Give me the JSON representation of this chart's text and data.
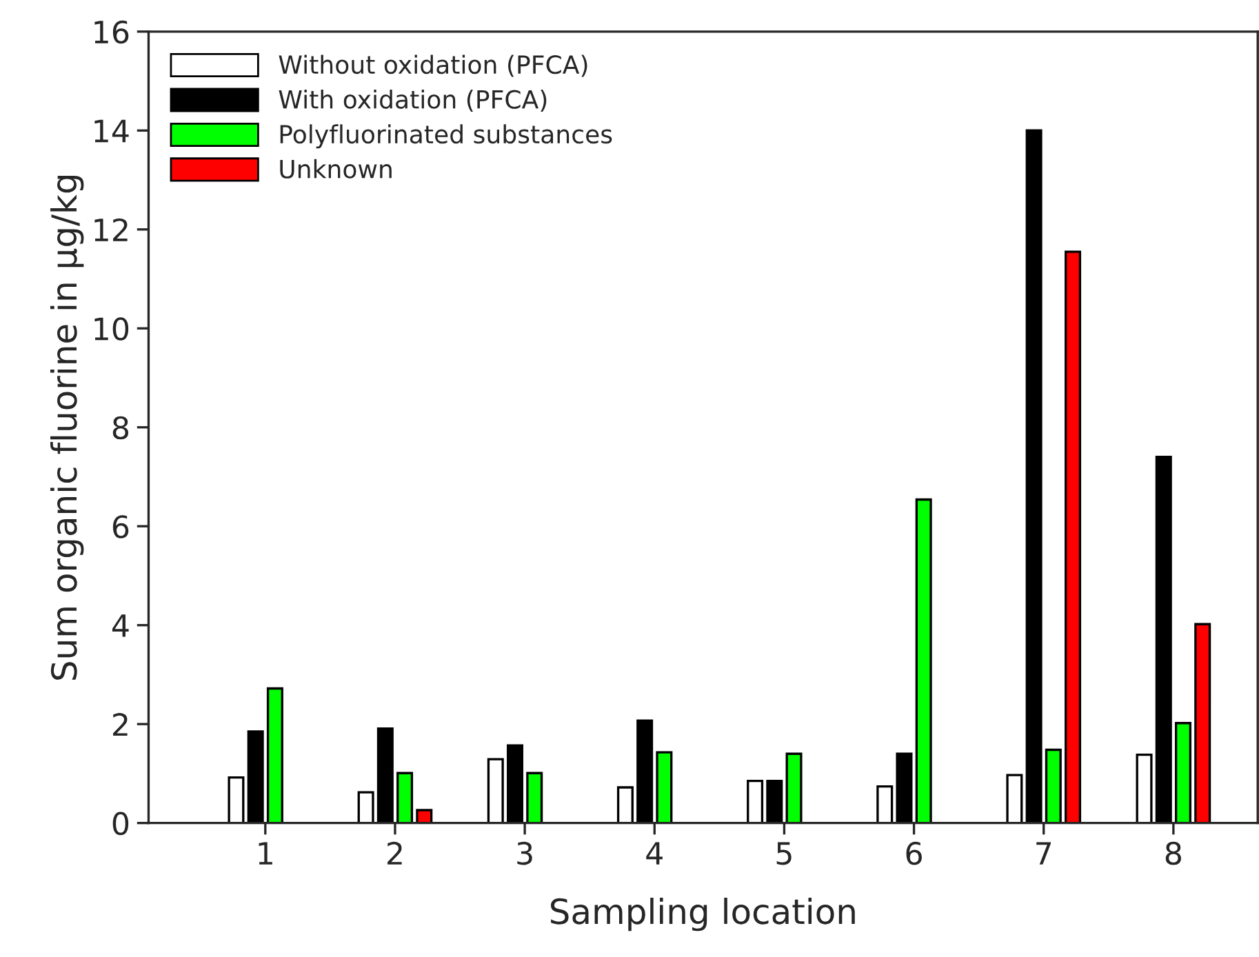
{
  "chart_data": {
    "type": "bar",
    "xlabel": "Sampling location",
    "ylabel": "Sum organic fluorine in µg/kg",
    "categories": [
      "1",
      "2",
      "3",
      "4",
      "5",
      "6",
      "7",
      "8"
    ],
    "series": [
      {
        "name": "Without oxidation (PFCA)",
        "color": "#ffffff",
        "values": [
          0.92,
          0.62,
          1.29,
          0.72,
          0.85,
          0.74,
          0.97,
          1.38
        ]
      },
      {
        "name": "With oxidation (PFCA)",
        "color": "#000000",
        "values": [
          1.85,
          1.91,
          1.57,
          2.07,
          0.85,
          1.4,
          14.0,
          7.4
        ]
      },
      {
        "name": "Polyfluorinated substances",
        "color": "#00ff00",
        "values": [
          2.72,
          1.01,
          1.01,
          1.43,
          1.4,
          6.54,
          1.48,
          2.02
        ]
      },
      {
        "name": "Unknown",
        "color": "#ff0000",
        "values": [
          null,
          0.26,
          null,
          null,
          null,
          null,
          11.55,
          4.02
        ]
      }
    ],
    "ylim": [
      0,
      16
    ],
    "yticks": [
      0,
      2,
      4,
      6,
      8,
      10,
      12,
      14,
      16
    ],
    "legend": "top left",
    "grid": false
  }
}
